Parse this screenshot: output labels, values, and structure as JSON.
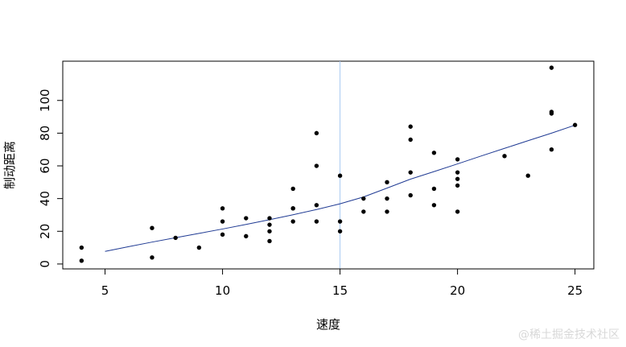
{
  "chart_data": {
    "type": "scatter",
    "title": "",
    "xlabel": "速度",
    "ylabel": "制动距离",
    "xlim": [
      3.2,
      25.8
    ],
    "ylim": [
      -3,
      124
    ],
    "xticks": [
      5,
      10,
      15,
      20,
      25
    ],
    "yticks": [
      0,
      20,
      40,
      60,
      80,
      100
    ],
    "grid": false,
    "legend": "none",
    "points": {
      "x": [
        4,
        4,
        7,
        7,
        8,
        9,
        10,
        10,
        10,
        11,
        11,
        12,
        12,
        12,
        12,
        13,
        13,
        13,
        13,
        14,
        14,
        14,
        14,
        15,
        15,
        15,
        16,
        16,
        17,
        17,
        17,
        18,
        18,
        18,
        18,
        19,
        19,
        19,
        20,
        20,
        20,
        20,
        20,
        22,
        23,
        24,
        24,
        24,
        24,
        25
      ],
      "y": [
        2,
        10,
        4,
        22,
        16,
        10,
        18,
        26,
        34,
        17,
        28,
        14,
        20,
        24,
        28,
        26,
        34,
        34,
        46,
        26,
        36,
        60,
        80,
        20,
        26,
        54,
        32,
        40,
        32,
        40,
        50,
        42,
        56,
        76,
        84,
        36,
        46,
        68,
        32,
        48,
        52,
        56,
        64,
        66,
        54,
        70,
        92,
        93,
        120,
        85
      ],
      "color": "#000000"
    },
    "fit_line": {
      "x": [
        5,
        6,
        7,
        8,
        9,
        10,
        11,
        12,
        13,
        14,
        15,
        16,
        17,
        18,
        19,
        20,
        21,
        22,
        23,
        24,
        25
      ],
      "y": [
        7.7,
        10.6,
        13.4,
        16.1,
        18.7,
        21.4,
        24.2,
        27.1,
        30.1,
        33.3,
        36.8,
        41.0,
        46.4,
        51.9,
        56.5,
        61.2,
        66.0,
        70.7,
        75.4,
        80.0,
        84.9
      ],
      "color": "#1f3a93"
    },
    "vline": {
      "x": 15,
      "color": "#a8c8f0"
    }
  },
  "watermark": "@稀土掘金技术社区"
}
